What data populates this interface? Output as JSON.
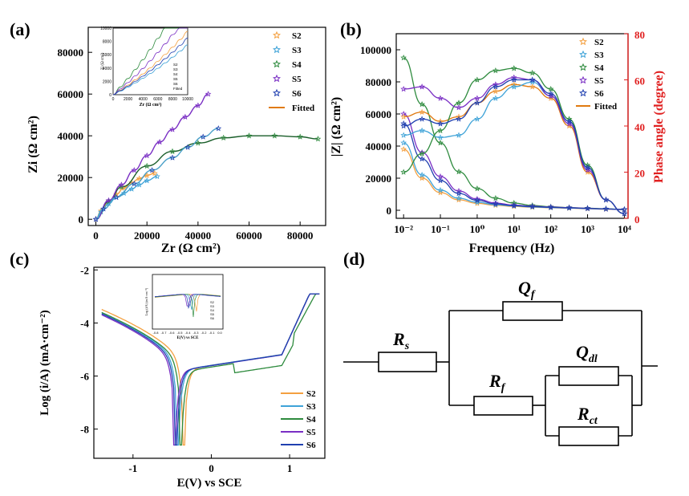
{
  "panels": {
    "a": "(a)",
    "b": "(b)",
    "c": "(c)",
    "d": "(d)"
  },
  "colors": {
    "S2": "#F4A040",
    "S3": "#3FA3D8",
    "S4": "#2E8B3E",
    "S5": "#7A2FC4",
    "S6": "#2040B0",
    "fit": "#E07A10",
    "phase_axis": "#E02020"
  },
  "chart_data": [
    {
      "id": "nyquist",
      "type": "scatter",
      "title": "",
      "xlabel": "Zr (Ω cm²)",
      "ylabel": "Zi (Ω cm²)",
      "xlim": [
        -3000,
        90000
      ],
      "ylim": [
        -3000,
        92000
      ],
      "xticks": [
        0,
        20000,
        40000,
        60000,
        80000
      ],
      "yticks": [
        0,
        20000,
        40000,
        60000,
        80000
      ],
      "xticklabels": [
        "0",
        "20000",
        "40000",
        "60000",
        "80000"
      ],
      "yticklabels": [
        "0",
        "20000",
        "40000",
        "60000",
        "80000"
      ],
      "legend": [
        "S2",
        "S3",
        "S4",
        "S5",
        "S6",
        "Fitted"
      ],
      "series": [
        {
          "name": "S2",
          "x": [
            0,
            2000,
            5000,
            8000,
            11000,
            14000,
            17000,
            20000,
            23000
          ],
          "y": [
            0,
            4000,
            8500,
            12000,
            15000,
            17500,
            19500,
            21000,
            22000
          ]
        },
        {
          "name": "S3",
          "x": [
            0,
            2000,
            5000,
            8000,
            11000,
            14000,
            17000,
            20000,
            24000
          ],
          "y": [
            0,
            3500,
            7500,
            10500,
            12500,
            14500,
            16500,
            18500,
            20500
          ]
        },
        {
          "name": "S4",
          "x": [
            0,
            5000,
            10000,
            20000,
            30000,
            40000,
            50000,
            60000,
            70000,
            80000,
            87000
          ],
          "y": [
            0,
            8500,
            15500,
            25500,
            32500,
            36500,
            39000,
            40000,
            40000,
            39500,
            38500
          ]
        },
        {
          "name": "S5",
          "x": [
            0,
            5000,
            10000,
            15000,
            20000,
            25000,
            30000,
            35000,
            40000,
            44000
          ],
          "y": [
            0,
            9000,
            16500,
            23500,
            30500,
            37000,
            43000,
            49000,
            54500,
            60000
          ]
        },
        {
          "name": "S6",
          "x": [
            0,
            3000,
            8000,
            15000,
            22000,
            30000,
            36000,
            42000,
            48000
          ],
          "y": [
            0,
            5000,
            10500,
            17000,
            23500,
            29500,
            34500,
            39500,
            43500
          ]
        }
      ],
      "inset": {
        "xlim": [
          0,
          10000
        ],
        "ylim": [
          0,
          10000
        ],
        "xticks": [
          "0",
          "2000",
          "4000",
          "6000",
          "8000",
          "10000"
        ],
        "yticks": [
          "0",
          "2000",
          "4000",
          "6000",
          "8000",
          "10000"
        ],
        "xlabel": "Zr (Ω cm²)",
        "ylabel": "Zi (Ω cm²)",
        "legend": [
          "S2",
          "S3",
          "S4",
          "S5",
          "S6",
          "Fitted"
        ]
      }
    },
    {
      "id": "bode",
      "type": "line",
      "xlabel": "Frequency (Hz)",
      "ylabel": "|Z| (Ω cm²)",
      "ylabel2": "Phase angle (degree)",
      "xlim_log10": [
        -2.2,
        4.1
      ],
      "ylim": [
        -5000,
        110000
      ],
      "ylim2": [
        0,
        80
      ],
      "xticklabels": [
        "10⁻²",
        "10⁻¹",
        "10⁰",
        "10¹",
        "10²",
        "10³",
        "10⁴"
      ],
      "yticklabels": [
        "0",
        "20000",
        "40000",
        "60000",
        "80000",
        "100000"
      ],
      "y2ticklabels": [
        "0",
        "20",
        "40",
        "60",
        "80"
      ],
      "legend": [
        "S2",
        "S3",
        "S4",
        "S5",
        "S6",
        "Fitted"
      ],
      "x_log10": [
        -2,
        -1.5,
        -1,
        -0.5,
        0,
        0.5,
        1,
        1.5,
        2,
        2.5,
        3,
        3.5,
        4
      ],
      "modulus": [
        {
          "name": "S2",
          "values": [
            38000,
            20000,
            11000,
            6500,
            4300,
            3100,
            2400,
            1900,
            1600,
            1300,
            1000,
            700,
            400
          ]
        },
        {
          "name": "S3",
          "values": [
            42000,
            22000,
            12500,
            7500,
            5000,
            3500,
            2700,
            2100,
            1700,
            1400,
            1100,
            800,
            500
          ]
        },
        {
          "name": "S4",
          "values": [
            95000,
            66000,
            42000,
            24000,
            13500,
            7500,
            4500,
            3000,
            2200,
            1700,
            1300,
            900,
            500
          ]
        },
        {
          "name": "S5",
          "values": [
            60000,
            36000,
            21000,
            12000,
            7000,
            4500,
            3200,
            2500,
            2000,
            1600,
            1200,
            800,
            500
          ]
        },
        {
          "name": "S6",
          "values": [
            54000,
            32000,
            18500,
            10500,
            6200,
            4000,
            2900,
            2300,
            1800,
            1500,
            1100,
            800,
            500
          ]
        }
      ],
      "phase": [
        {
          "name": "S2",
          "values": [
            44,
            46,
            42,
            44,
            50,
            55,
            58,
            57,
            52,
            40,
            20,
            8,
            2
          ]
        },
        {
          "name": "S3",
          "values": [
            36,
            38,
            35,
            36,
            43,
            52,
            57,
            59,
            53,
            42,
            22,
            8,
            2
          ]
        },
        {
          "name": "S4",
          "values": [
            20,
            28,
            38,
            50,
            60,
            64,
            65,
            63,
            56,
            43,
            23,
            8,
            2
          ]
        },
        {
          "name": "S5",
          "values": [
            56,
            57,
            52,
            48,
            52,
            58,
            61,
            60,
            53,
            41,
            21,
            8,
            2
          ]
        },
        {
          "name": "S6",
          "values": [
            40,
            43,
            41,
            43,
            50,
            57,
            60,
            60,
            54,
            42,
            22,
            8,
            2
          ]
        }
      ]
    },
    {
      "id": "polarization",
      "type": "line",
      "xlabel": "E(V) vs SCE",
      "ylabel": "Log (i/A) (mA·cm⁻²)",
      "xlim": [
        -1.5,
        1.45
      ],
      "ylim": [
        -9.1,
        -1.9
      ],
      "xticklabels": [
        "-1",
        "0",
        "1"
      ],
      "yticklabels": [
        "-8",
        "-6",
        "-4",
        "-2"
      ],
      "legend": [
        "S2",
        "S3",
        "S4",
        "S5",
        "S6"
      ],
      "Ecorr": {
        "S2": -0.35,
        "S3": -0.42,
        "S4": -0.38,
        "S5": -0.46,
        "S6": -0.44
      },
      "inset": {
        "xticks": [
          "-0.8",
          "-0.7",
          "-0.6",
          "-0.5",
          "-0.4",
          "-0.3",
          "-0.2",
          "-0.1",
          "0.0"
        ],
        "xlabel": "E(V) vs SCE",
        "ylabel": "Log (i/A) (mA·cm⁻²)",
        "legend": [
          "S2",
          "S3",
          "S4",
          "S5",
          "S6"
        ]
      }
    }
  ],
  "circuit": {
    "labels": {
      "Rs": "R",
      "Rs_sub": "s",
      "Qf": "Q",
      "Qf_sub": "f",
      "Rf": "R",
      "Rf_sub": "f",
      "Qdl": "Q",
      "Qdl_sub": "dl",
      "Rct": "R",
      "Rct_sub": "ct"
    }
  }
}
